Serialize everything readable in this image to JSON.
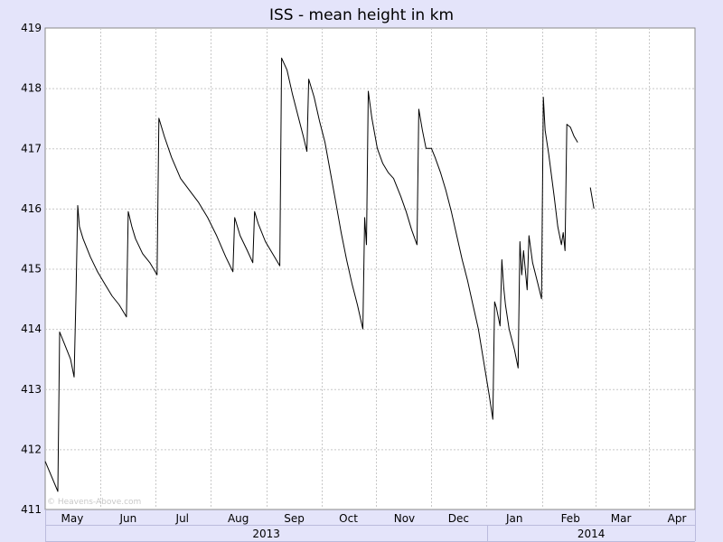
{
  "chart_data": {
    "type": "line",
    "title": "ISS - mean height in km",
    "xlabel": "",
    "ylabel": "",
    "ylim": [
      411,
      419
    ],
    "yticks": [
      411,
      412,
      413,
      414,
      415,
      416,
      417,
      418,
      419
    ],
    "grid": true,
    "xlim_day": [
      0,
      360
    ],
    "months": [
      {
        "label": "May",
        "day": 15
      },
      {
        "label": "Jun",
        "day": 46
      },
      {
        "label": "Jul",
        "day": 76
      },
      {
        "label": "Aug",
        "day": 107
      },
      {
        "label": "Sep",
        "day": 138
      },
      {
        "label": "Oct",
        "day": 168
      },
      {
        "label": "Nov",
        "day": 199
      },
      {
        "label": "Dec",
        "day": 229
      },
      {
        "label": "Jan",
        "day": 260
      },
      {
        "label": "Feb",
        "day": 291
      },
      {
        "label": "Mar",
        "day": 319
      },
      {
        "label": "Apr",
        "day": 350
      },
      {
        "label": "May",
        "day": 380
      }
    ],
    "years": [
      {
        "label": "2013",
        "start_day": 0,
        "end_day": 245
      },
      {
        "label": "2014",
        "start_day": 245,
        "end_day": 400
      }
    ],
    "series": [
      {
        "name": "ISS mean height (km)",
        "segments": [
          [
            [
              0,
              411.8
            ],
            [
              7,
              411.3
            ],
            [
              8,
              413.95
            ],
            [
              10,
              413.8
            ],
            [
              14,
              413.5
            ],
            [
              16,
              413.2
            ],
            [
              17,
              414.5
            ],
            [
              18,
              416.05
            ],
            [
              19,
              415.7
            ],
            [
              21,
              415.5
            ],
            [
              25,
              415.2
            ],
            [
              29,
              414.95
            ],
            [
              33,
              414.75
            ],
            [
              37,
              414.55
            ],
            [
              41,
              414.4
            ],
            [
              45,
              414.2
            ],
            [
              46,
              415.95
            ],
            [
              48,
              415.7
            ],
            [
              50,
              415.5
            ],
            [
              54,
              415.25
            ],
            [
              58,
              415.1
            ],
            [
              62,
              414.9
            ],
            [
              63,
              417.5
            ],
            [
              66,
              417.2
            ],
            [
              70,
              416.85
            ],
            [
              75,
              416.5
            ],
            [
              80,
              416.3
            ],
            [
              85,
              416.1
            ],
            [
              90,
              415.85
            ],
            [
              95,
              415.55
            ],
            [
              100,
              415.2
            ],
            [
              104,
              414.95
            ],
            [
              105,
              415.85
            ],
            [
              108,
              415.55
            ],
            [
              112,
              415.3
            ],
            [
              115,
              415.1
            ],
            [
              116,
              415.95
            ],
            [
              118,
              415.75
            ],
            [
              122,
              415.45
            ],
            [
              126,
              415.25
            ],
            [
              130,
              415.05
            ],
            [
              131,
              418.5
            ],
            [
              134,
              418.3
            ],
            [
              137,
              417.9
            ],
            [
              140,
              417.55
            ],
            [
              143,
              417.2
            ],
            [
              145,
              416.95
            ],
            [
              146,
              418.15
            ],
            [
              149,
              417.85
            ],
            [
              152,
              417.45
            ],
            [
              155,
              417.1
            ],
            [
              158,
              416.6
            ],
            [
              161,
              416.1
            ],
            [
              164,
              415.6
            ],
            [
              167,
              415.15
            ],
            [
              170,
              414.75
            ],
            [
              173,
              414.4
            ],
            [
              176,
              414.0
            ],
            [
              177,
              415.85
            ],
            [
              178,
              415.4
            ],
            [
              179,
              417.95
            ],
            [
              181,
              417.5
            ],
            [
              184,
              417.0
            ],
            [
              187,
              416.75
            ],
            [
              190,
              416.6
            ],
            [
              193,
              416.5
            ],
            [
              197,
              416.2
            ],
            [
              200,
              415.95
            ],
            [
              203,
              415.65
            ],
            [
              206,
              415.4
            ],
            [
              207,
              417.65
            ],
            [
              209,
              417.3
            ],
            [
              211,
              417.0
            ],
            [
              214,
              417.0
            ],
            [
              216,
              416.85
            ],
            [
              219,
              416.6
            ],
            [
              222,
              416.3
            ],
            [
              225,
              415.95
            ],
            [
              228,
              415.55
            ],
            [
              231,
              415.15
            ],
            [
              234,
              414.8
            ],
            [
              237,
              414.4
            ],
            [
              240,
              414.0
            ],
            [
              243,
              413.45
            ],
            [
              246,
              412.9
            ],
            [
              248,
              412.5
            ],
            [
              249,
              414.45
            ],
            [
              250,
              414.35
            ],
            [
              252,
              414.05
            ],
            [
              253,
              415.15
            ],
            [
              254,
              414.7
            ],
            [
              255,
              414.4
            ],
            [
              257,
              414.0
            ],
            [
              260,
              413.65
            ],
            [
              262,
              413.35
            ],
            [
              263,
              415.45
            ],
            [
              264,
              414.9
            ],
            [
              265,
              415.3
            ],
            [
              267,
              414.65
            ],
            [
              268,
              415.55
            ],
            [
              270,
              415.1
            ],
            [
              273,
              414.75
            ],
            [
              275,
              414.5
            ],
            [
              276,
              417.85
            ],
            [
              277,
              417.3
            ],
            [
              279,
              416.9
            ],
            [
              282,
              416.2
            ],
            [
              284,
              415.7
            ],
            [
              286,
              415.4
            ],
            [
              287,
              415.6
            ],
            [
              288,
              415.3
            ],
            [
              289,
              417.4
            ],
            [
              291,
              417.35
            ],
            [
              293,
              417.2
            ],
            [
              295,
              417.1
            ]
          ],
          [
            [
              302,
              416.35
            ],
            [
              304,
              416.0
            ]
          ]
        ]
      }
    ],
    "x_group_labels": [
      "2013",
      "2014"
    ]
  },
  "watermark": "© Heavens-Above.com",
  "colors": {
    "background": "#e4e4fa",
    "plot_area": "#ffffff",
    "grid": "#c8c8c8",
    "line": "#000000"
  }
}
